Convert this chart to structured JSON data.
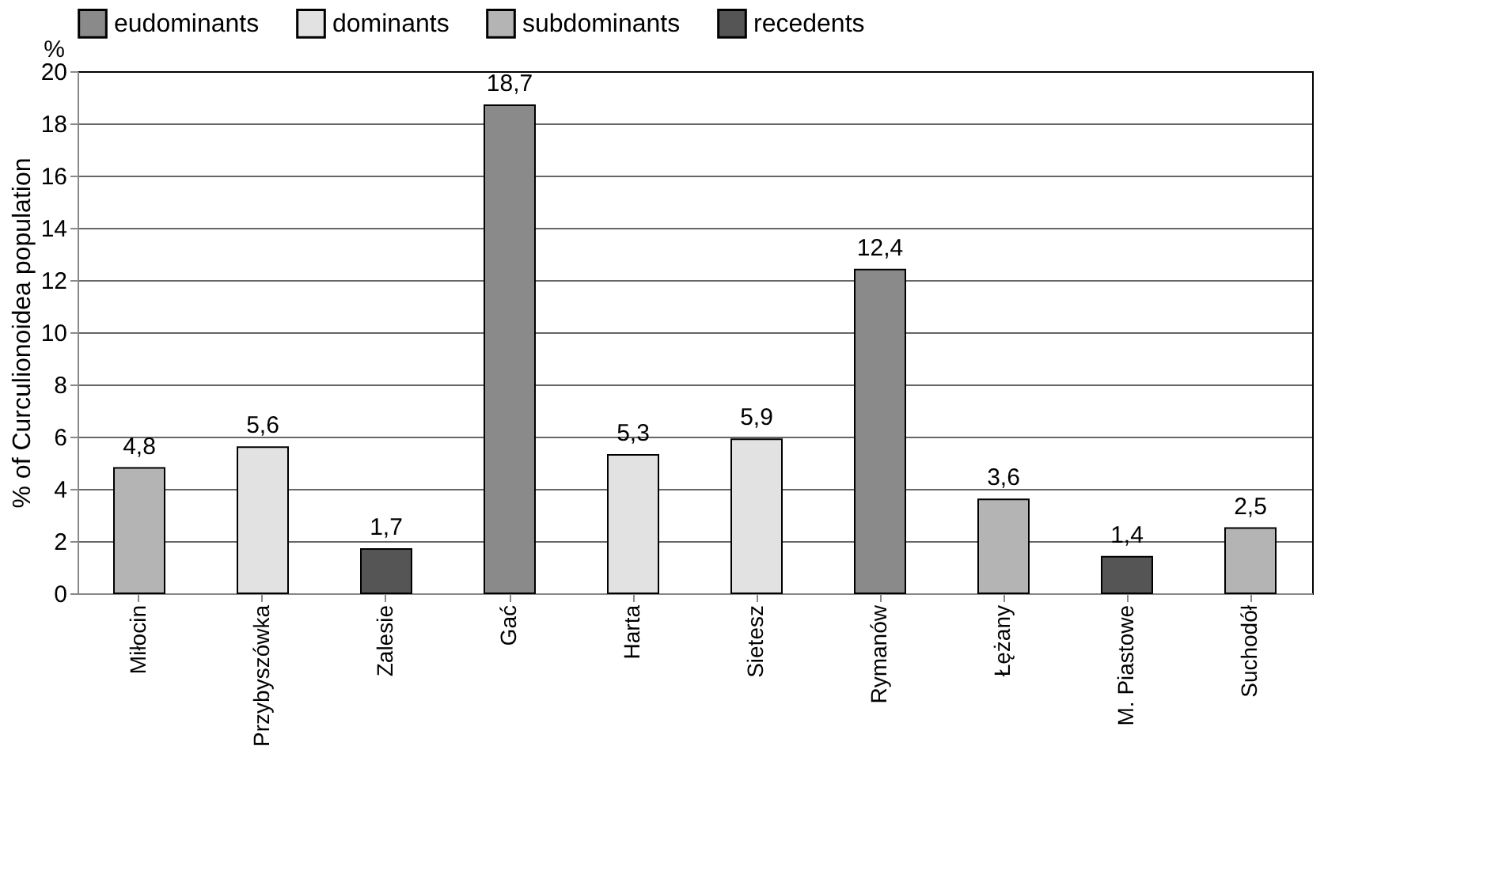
{
  "chart_data": {
    "type": "bar",
    "ylabel": "% of Curculionoidea population",
    "annotations": [
      "%"
    ],
    "categories": [
      "Miłocin",
      "Przybyszówka",
      "Zalesie",
      "Gać",
      "Harta",
      "Sietesz",
      "Rymanów",
      "Łężany",
      "M. Piastowe",
      "Suchodół"
    ],
    "series": [
      {
        "name": "eudominants",
        "color": "#8a8a8a",
        "values": [
          null,
          null,
          null,
          18.7,
          null,
          null,
          12.4,
          null,
          null,
          null
        ],
        "value_labels": [
          null,
          null,
          null,
          "18,7",
          null,
          null,
          "12,4",
          null,
          null,
          null
        ]
      },
      {
        "name": "dominants",
        "color": "#e2e2e2",
        "values": [
          null,
          5.6,
          null,
          null,
          5.3,
          5.9,
          null,
          null,
          null,
          null
        ],
        "value_labels": [
          null,
          "5,6",
          null,
          null,
          "5,3",
          "5,9",
          null,
          null,
          null,
          null
        ]
      },
      {
        "name": "subdominants",
        "color": "#b4b4b4",
        "values": [
          4.8,
          null,
          null,
          null,
          null,
          null,
          null,
          3.6,
          null,
          2.5
        ],
        "value_labels": [
          "4,8",
          null,
          null,
          null,
          null,
          null,
          null,
          "3,6",
          null,
          "2,5"
        ]
      },
      {
        "name": "recedents",
        "color": "#555555",
        "values": [
          null,
          null,
          1.7,
          null,
          null,
          null,
          null,
          null,
          1.4,
          null
        ],
        "value_labels": [
          null,
          null,
          "1,7",
          null,
          null,
          null,
          null,
          null,
          "1,4",
          null
        ]
      }
    ],
    "ylim": [
      0,
      20
    ],
    "yticks": [
      0,
      2,
      4,
      6,
      8,
      10,
      12,
      14,
      16,
      18,
      20
    ],
    "grid": "y",
    "legend": "top"
  }
}
